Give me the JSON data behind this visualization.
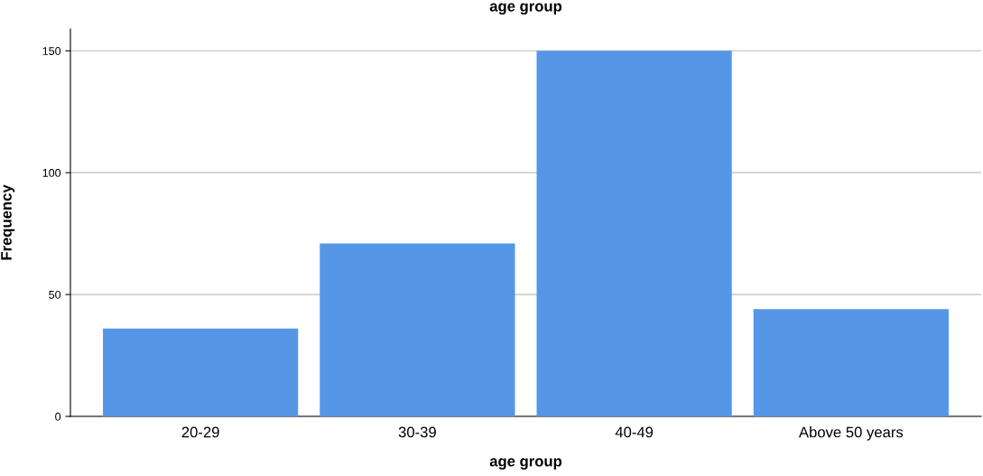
{
  "chart_data": {
    "type": "bar",
    "title": "age group",
    "xlabel": "age group",
    "ylabel": "Frequency",
    "categories": [
      "20-29",
      "30-39",
      "40-49",
      "Above 50 years"
    ],
    "values": [
      36,
      71,
      150,
      44
    ],
    "color": "#5596e6",
    "ylim": [
      0,
      159
    ],
    "yticks": [
      0,
      50,
      100,
      150
    ],
    "grid": "y"
  }
}
